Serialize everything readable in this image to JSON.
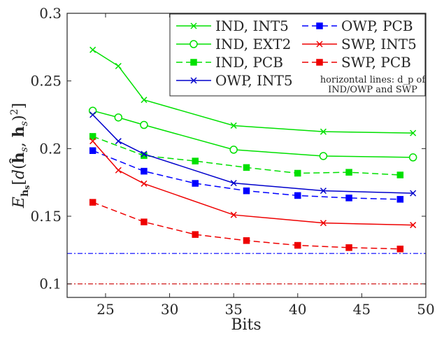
{
  "chart_data": {
    "type": "line",
    "xlabel": "Bits",
    "ylabel": "E_{h_s}[d(ĥ_s, h_s)^2]",
    "xlim": [
      22,
      50
    ],
    "ylim": [
      0.09,
      0.3
    ],
    "xticks": [
      25,
      30,
      35,
      40,
      45,
      50
    ],
    "yticks": [
      0.1,
      0.15,
      0.2,
      0.25,
      0.3
    ],
    "xtick_labels": [
      "25",
      "30",
      "35",
      "40",
      "45",
      "50"
    ],
    "ytick_labels": [
      "0.1",
      "0.15",
      "0.2",
      "0.25",
      "0.3"
    ],
    "grid": false,
    "legend_position": "top-right",
    "series": [
      {
        "name": "IND, INT5",
        "color": "#00e000",
        "dash": "solid",
        "marker": "x",
        "x": [
          24,
          26,
          28,
          35,
          42,
          49
        ],
        "y": [
          0.273,
          0.261,
          0.236,
          0.217,
          0.2125,
          0.2115
        ]
      },
      {
        "name": "IND, EXT2",
        "color": "#00e000",
        "dash": "solid",
        "marker": "o",
        "x": [
          24,
          26,
          28,
          35,
          42,
          49
        ],
        "y": [
          0.228,
          0.223,
          0.2175,
          0.1992,
          0.1945,
          0.1935
        ]
      },
      {
        "name": "IND, PCB",
        "color": "#00e000",
        "dash": "dashed",
        "marker": "square",
        "x": [
          24,
          28,
          32,
          36,
          40,
          44,
          48
        ],
        "y": [
          0.209,
          0.1948,
          0.1908,
          0.186,
          0.1818,
          0.1825,
          0.1805
        ]
      },
      {
        "name": "OWP, INT5",
        "color": "#0000cc",
        "dash": "solid",
        "marker": "x",
        "x": [
          24,
          26,
          28,
          35,
          42,
          49
        ],
        "y": [
          0.225,
          0.2055,
          0.196,
          0.1745,
          0.1688,
          0.167
        ]
      },
      {
        "name": "OWP, PCB",
        "color": "#0000ff",
        "dash": "dashed",
        "marker": "square",
        "x": [
          24,
          28,
          32,
          36,
          40,
          44,
          48
        ],
        "y": [
          0.1985,
          0.1833,
          0.1743,
          0.1688,
          0.1653,
          0.1635,
          0.1625
        ]
      },
      {
        "name": "SWP, INT5",
        "color": "#ee0000",
        "dash": "solid",
        "marker": "x",
        "x": [
          24,
          26,
          28,
          35,
          42,
          49
        ],
        "y": [
          0.2055,
          0.184,
          0.1741,
          0.151,
          0.145,
          0.1435
        ]
      },
      {
        "name": "SWP, PCB",
        "color": "#ee0000",
        "dash": "dashed",
        "marker": "square",
        "x": [
          24,
          28,
          32,
          36,
          40,
          44,
          48
        ],
        "y": [
          0.1603,
          0.1458,
          0.1365,
          0.132,
          0.1285,
          0.1268,
          0.1258
        ]
      }
    ],
    "hlines": [
      {
        "y": 0.1225,
        "color": "#0000ff",
        "dash": "dashdot"
      },
      {
        "y": 0.1,
        "color": "#cc0000",
        "dash": "dashdot"
      }
    ],
    "annotation": {
      "line1": "horizontal lines: d_p of",
      "line2": "IND/OWP and SWP"
    },
    "legend_layout": {
      "left_column": [
        0,
        1,
        2,
        3
      ],
      "right_column": [
        4,
        5,
        6
      ]
    }
  }
}
